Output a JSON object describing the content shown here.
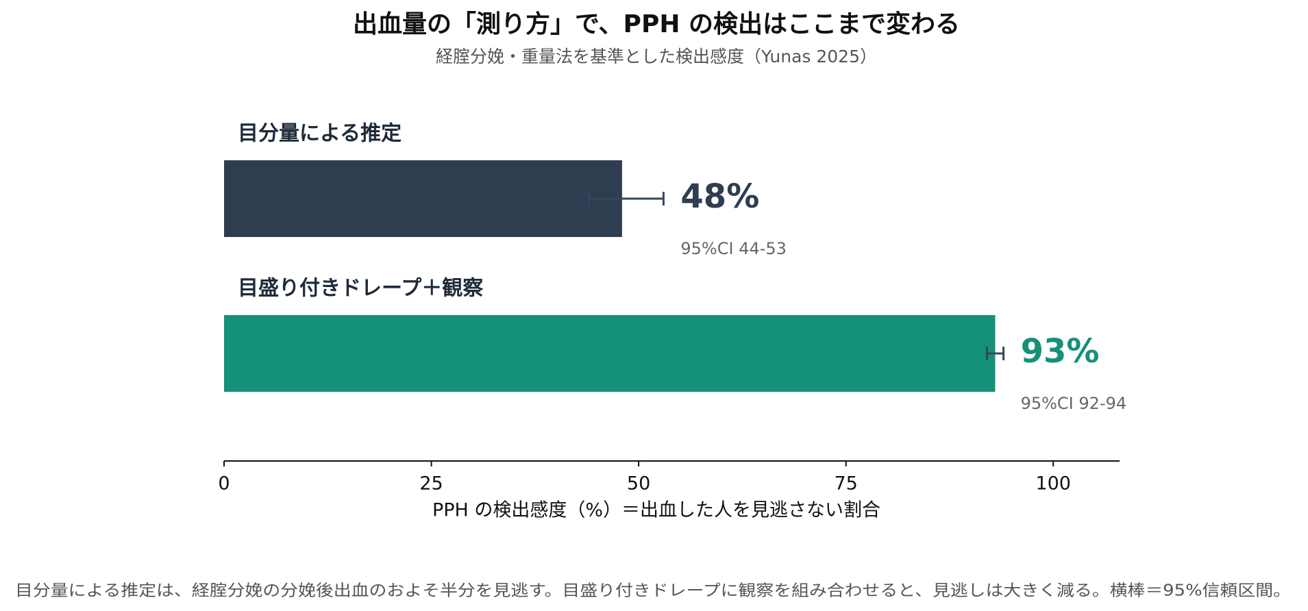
{
  "chart_data": {
    "type": "bar",
    "orientation": "horizontal",
    "title": "出血量の「測り方」で、PPH の検出はここまで変わる",
    "subtitle": "経腟分娩・重量法を基準とした検出感度（Yunas 2025）",
    "categories": [
      "目分量による推定",
      "目盛り付きドレープ＋観察"
    ],
    "values": [
      48,
      93
    ],
    "value_labels": [
      "48%",
      "93%"
    ],
    "ci_low": [
      44,
      92
    ],
    "ci_high": [
      53,
      94
    ],
    "ci_labels": [
      "95%CI 44-53",
      "95%CI 92-94"
    ],
    "colors": [
      "#2e3d50",
      "#159178"
    ],
    "xlim": [
      0,
      108
    ],
    "xticks": [
      0,
      25,
      50,
      75,
      100
    ],
    "xlabel": "PPH の検出感度（%）＝出血した人を見逃さない割合",
    "note": "目分量による推定は、経腟分娩の分娩後出血のおよそ半分を見逃す。目盛り付きドレープに観察を組み合わせると、見逃しは大きく減る。横棒＝95%信頼区間。"
  }
}
